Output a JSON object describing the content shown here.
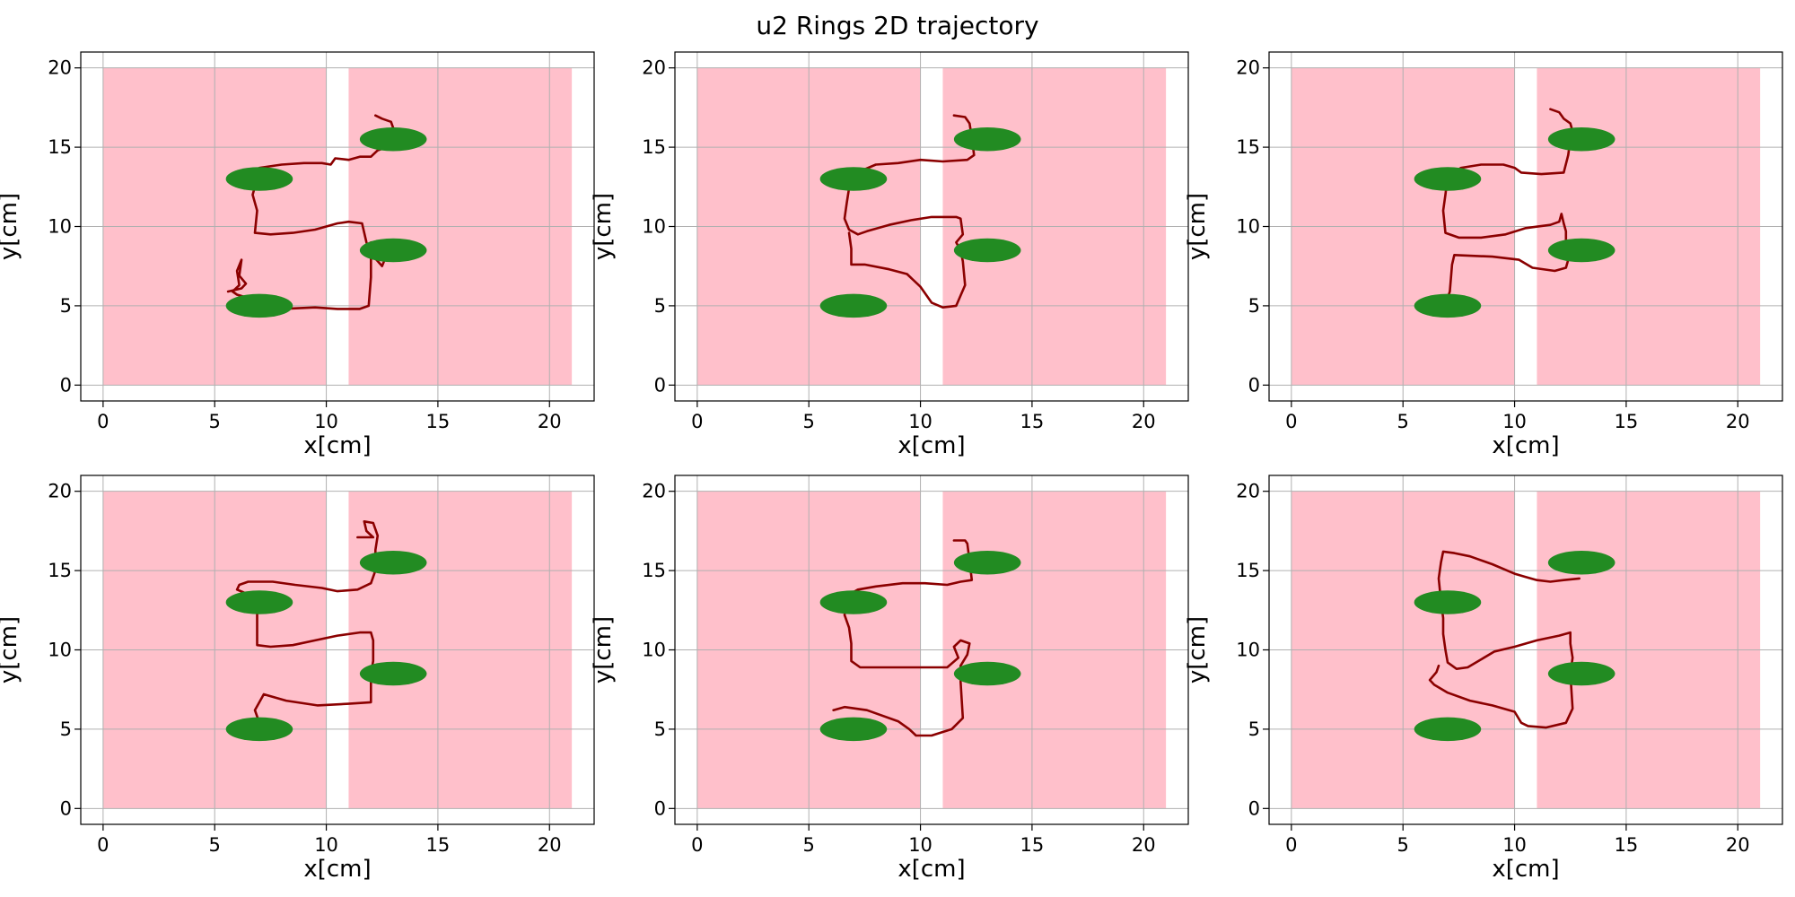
{
  "title": "u2 Rings 2D trajectory",
  "chart_data": {
    "type": "line",
    "layout": "2x3 subplots",
    "shared": {
      "xlabel": "x[cm]",
      "ylabel": "y[cm]",
      "xlim": [
        -1,
        22
      ],
      "ylim": [
        -1,
        21
      ],
      "xticks": [
        0,
        5,
        10,
        15,
        20
      ],
      "yticks": [
        0,
        5,
        10,
        15,
        20
      ],
      "grid": true,
      "regions": [
        {
          "x": [
            0,
            10
          ],
          "y": [
            0,
            20
          ],
          "color": "#ffc0cb"
        },
        {
          "x": [
            11,
            21
          ],
          "y": [
            0,
            20
          ],
          "color": "#ffc0cb"
        }
      ],
      "rings": [
        {
          "cx": 7,
          "cy": 13,
          "rx": 1.5,
          "ry": 0.75
        },
        {
          "cx": 7,
          "cy": 5,
          "rx": 1.5,
          "ry": 0.75
        },
        {
          "cx": 13,
          "cy": 15.5,
          "rx": 1.5,
          "ry": 0.75
        },
        {
          "cx": 13,
          "cy": 8.5,
          "rx": 1.5,
          "ry": 0.75
        }
      ],
      "ring_color": "#228b22",
      "trajectory_color": "#8b0000"
    },
    "subplots": [
      {
        "trajectory": [
          [
            12.2,
            17
          ],
          [
            12.5,
            16.8
          ],
          [
            12.9,
            16.6
          ],
          [
            13,
            16.2
          ],
          [
            12.8,
            15.5
          ],
          [
            12.7,
            15
          ],
          [
            12.3,
            14.8
          ],
          [
            12,
            14.4
          ],
          [
            11.5,
            14.4
          ],
          [
            11,
            14.2
          ],
          [
            10.4,
            14.3
          ],
          [
            10.2,
            13.9
          ],
          [
            9.8,
            14
          ],
          [
            9,
            14
          ],
          [
            8,
            13.9
          ],
          [
            7,
            13.7
          ],
          [
            6.9,
            13
          ],
          [
            6.7,
            12
          ],
          [
            6.9,
            11
          ],
          [
            6.8,
            9.6
          ],
          [
            7.5,
            9.5
          ],
          [
            8.5,
            9.6
          ],
          [
            9.5,
            9.8
          ],
          [
            10.5,
            10.2
          ],
          [
            11,
            10.3
          ],
          [
            11.6,
            10.2
          ],
          [
            11.8,
            9
          ],
          [
            12,
            8.3
          ],
          [
            12.5,
            7.5
          ],
          [
            12.7,
            8.2
          ],
          [
            12.3,
            8.8
          ],
          [
            12,
            9
          ],
          [
            12,
            6.8
          ],
          [
            11.9,
            5
          ],
          [
            11.5,
            4.8
          ],
          [
            10.5,
            4.8
          ],
          [
            9.5,
            4.9
          ],
          [
            8,
            4.8
          ],
          [
            7.2,
            5.1
          ],
          [
            6.5,
            5.5
          ],
          [
            6,
            5.7
          ],
          [
            5.8,
            5.9
          ],
          [
            6.1,
            6.3
          ],
          [
            6,
            7.2
          ],
          [
            6.2,
            7.9
          ],
          [
            6.1,
            6.9
          ],
          [
            6.4,
            6.4
          ],
          [
            6.2,
            6.1
          ],
          [
            5.6,
            5.9
          ]
        ]
      },
      {
        "trajectory": [
          [
            11.5,
            17
          ],
          [
            12,
            16.9
          ],
          [
            12.2,
            16.5
          ],
          [
            12.3,
            15.6
          ],
          [
            12.4,
            14.5
          ],
          [
            12.1,
            14.2
          ],
          [
            11,
            14.1
          ],
          [
            10,
            14.2
          ],
          [
            9,
            14
          ],
          [
            8,
            13.9
          ],
          [
            7,
            13.3
          ],
          [
            6.8,
            12.4
          ],
          [
            6.7,
            11.5
          ],
          [
            6.6,
            10.5
          ],
          [
            6.8,
            9.8
          ],
          [
            7.2,
            9.5
          ],
          [
            7.6,
            9.7
          ],
          [
            8.6,
            10.1
          ],
          [
            9.6,
            10.4
          ],
          [
            10.5,
            10.6
          ],
          [
            11.6,
            10.6
          ],
          [
            11.8,
            10.5
          ],
          [
            11.9,
            9.5
          ],
          [
            11.6,
            9
          ],
          [
            11.8,
            8.5
          ],
          [
            11.9,
            7.8
          ],
          [
            12,
            6.3
          ],
          [
            11.6,
            5
          ],
          [
            11,
            4.9
          ],
          [
            10.5,
            5.2
          ],
          [
            10,
            6.2
          ],
          [
            9.4,
            7
          ],
          [
            8.6,
            7.3
          ],
          [
            7.5,
            7.6
          ],
          [
            6.9,
            7.6
          ],
          [
            6.9,
            8.6
          ],
          [
            6.8,
            9.6
          ]
        ]
      },
      {
        "trajectory": [
          [
            11.6,
            17.4
          ],
          [
            12,
            17.2
          ],
          [
            12.2,
            16.8
          ],
          [
            12.5,
            16.5
          ],
          [
            12.6,
            16
          ],
          [
            12.5,
            15.5
          ],
          [
            12.4,
            14.5
          ],
          [
            12.2,
            13.4
          ],
          [
            11.2,
            13.3
          ],
          [
            10.3,
            13.4
          ],
          [
            10,
            13.7
          ],
          [
            9.5,
            13.9
          ],
          [
            8.5,
            13.9
          ],
          [
            7.6,
            13.7
          ],
          [
            7,
            13.2
          ],
          [
            6.9,
            12
          ],
          [
            6.8,
            11
          ],
          [
            6.9,
            9.6
          ],
          [
            7.5,
            9.3
          ],
          [
            8.5,
            9.3
          ],
          [
            9.6,
            9.5
          ],
          [
            10.5,
            9.9
          ],
          [
            11.6,
            10.1
          ],
          [
            12,
            10.3
          ],
          [
            12.1,
            10.8
          ],
          [
            12.2,
            10.2
          ],
          [
            12.3,
            9.7
          ],
          [
            12.3,
            9
          ],
          [
            12.5,
            8.8
          ],
          [
            12.2,
            8.7
          ],
          [
            12.4,
            7.9
          ],
          [
            12.3,
            7.4
          ],
          [
            11.8,
            7.2
          ],
          [
            10.8,
            7.4
          ],
          [
            10.2,
            7.9
          ],
          [
            9,
            8.1
          ],
          [
            7.3,
            8.2
          ],
          [
            7.2,
            7.6
          ],
          [
            7.1,
            5.9
          ],
          [
            7,
            5.5
          ]
        ]
      },
      {
        "trajectory": [
          [
            11.4,
            17.1
          ],
          [
            12.1,
            17.1
          ],
          [
            11.8,
            17.5
          ],
          [
            11.7,
            18.1
          ],
          [
            12.1,
            18
          ],
          [
            12.2,
            17.6
          ],
          [
            12.3,
            17.2
          ],
          [
            12.2,
            16.3
          ],
          [
            12.2,
            15
          ],
          [
            12,
            14.2
          ],
          [
            11.4,
            13.8
          ],
          [
            10.5,
            13.7
          ],
          [
            9.8,
            13.9
          ],
          [
            8.6,
            14.1
          ],
          [
            7.6,
            14.3
          ],
          [
            6.5,
            14.3
          ],
          [
            6.1,
            14.1
          ],
          [
            6,
            13.8
          ],
          [
            6.5,
            13.5
          ],
          [
            6.9,
            13
          ],
          [
            6.9,
            11.2
          ],
          [
            6.9,
            10.3
          ],
          [
            7.5,
            10.2
          ],
          [
            8.5,
            10.3
          ],
          [
            9.5,
            10.6
          ],
          [
            10.5,
            10.9
          ],
          [
            11.5,
            11.1
          ],
          [
            12,
            11.1
          ],
          [
            12.1,
            10.6
          ],
          [
            12.1,
            9.3
          ],
          [
            12,
            8.5
          ],
          [
            12,
            6.7
          ],
          [
            11,
            6.6
          ],
          [
            9.6,
            6.5
          ],
          [
            8.2,
            6.8
          ],
          [
            7.2,
            7.2
          ],
          [
            6.8,
            6.2
          ],
          [
            7,
            5.4
          ]
        ]
      },
      {
        "trajectory": [
          [
            11.5,
            16.9
          ],
          [
            12,
            16.9
          ],
          [
            12.1,
            16.7
          ],
          [
            12.2,
            15.6
          ],
          [
            12.3,
            14.4
          ],
          [
            11.8,
            14.3
          ],
          [
            11.2,
            14.1
          ],
          [
            10.2,
            14.2
          ],
          [
            9.2,
            14.2
          ],
          [
            8,
            14
          ],
          [
            7.2,
            13.8
          ],
          [
            6.7,
            13.4
          ],
          [
            6.6,
            12.2
          ],
          [
            6.8,
            11.4
          ],
          [
            6.9,
            10.4
          ],
          [
            6.9,
            9.3
          ],
          [
            7.3,
            8.9
          ],
          [
            8.2,
            8.9
          ],
          [
            9.4,
            8.9
          ],
          [
            10.5,
            8.9
          ],
          [
            11.2,
            8.9
          ],
          [
            11.7,
            9.5
          ],
          [
            11.5,
            10.2
          ],
          [
            11.8,
            10.6
          ],
          [
            12.2,
            10.4
          ],
          [
            12.1,
            9.7
          ],
          [
            11.8,
            9
          ],
          [
            11.8,
            8
          ],
          [
            11.9,
            5.7
          ],
          [
            11.4,
            5
          ],
          [
            10.5,
            4.6
          ],
          [
            9.8,
            4.6
          ],
          [
            9.5,
            5
          ],
          [
            9,
            5.5
          ],
          [
            7.6,
            6.2
          ],
          [
            6.6,
            6.4
          ],
          [
            6.1,
            6.2
          ]
        ]
      },
      {
        "trajectory": [
          [
            12.9,
            14.5
          ],
          [
            12.2,
            14.4
          ],
          [
            11.6,
            14.3
          ],
          [
            11,
            14.4
          ],
          [
            10.5,
            14.6
          ],
          [
            10,
            14.8
          ],
          [
            9,
            15.4
          ],
          [
            8,
            15.9
          ],
          [
            7.3,
            16.1
          ],
          [
            6.8,
            16.2
          ],
          [
            6.7,
            15.5
          ],
          [
            6.6,
            14.5
          ],
          [
            6.7,
            13.1
          ],
          [
            6.8,
            12
          ],
          [
            6.8,
            11
          ],
          [
            6.9,
            10
          ],
          [
            7,
            9.2
          ],
          [
            7.4,
            8.8
          ],
          [
            7.9,
            8.9
          ],
          [
            8.5,
            9.4
          ],
          [
            9.1,
            9.9
          ],
          [
            10,
            10.2
          ],
          [
            11,
            10.6
          ],
          [
            12,
            10.9
          ],
          [
            12.5,
            11.1
          ],
          [
            12.5,
            10.4
          ],
          [
            12.6,
            9.5
          ],
          [
            12.5,
            8.5
          ],
          [
            12.6,
            6.3
          ],
          [
            12.3,
            5.4
          ],
          [
            11.4,
            5.1
          ],
          [
            10.6,
            5.2
          ],
          [
            10.3,
            5.4
          ],
          [
            10,
            6.1
          ],
          [
            9,
            6.5
          ],
          [
            8,
            6.8
          ],
          [
            7,
            7.3
          ],
          [
            6.4,
            7.8
          ],
          [
            6.2,
            8.1
          ],
          [
            6.5,
            8.6
          ],
          [
            6.6,
            9
          ]
        ]
      }
    ]
  }
}
